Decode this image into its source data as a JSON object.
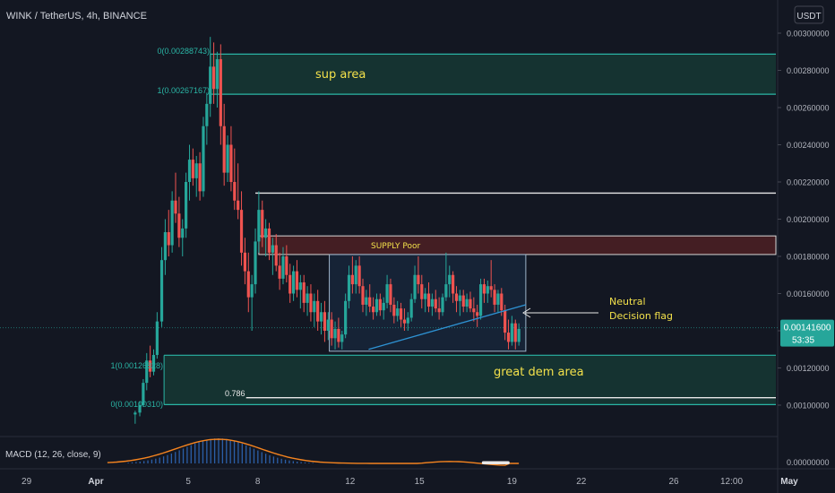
{
  "header": {
    "symbol_title": "WINK / TetherUS, 4h, BINANCE"
  },
  "currency_button": {
    "label": "USDT"
  },
  "price_axis": {
    "ticks": [
      {
        "label": "0.00300000",
        "value": 0.003
      },
      {
        "label": "0.00280000",
        "value": 0.0028
      },
      {
        "label": "0.00260000",
        "value": 0.0026
      },
      {
        "label": "0.00240000",
        "value": 0.0024
      },
      {
        "label": "0.00220000",
        "value": 0.0022
      },
      {
        "label": "0.00200000",
        "value": 0.002
      },
      {
        "label": "0.00180000",
        "value": 0.0018
      },
      {
        "label": "0.00160000",
        "value": 0.0016
      },
      {
        "label": "0.00140000",
        "value": 0.0014
      },
      {
        "label": "0.00120000",
        "value": 0.0012
      },
      {
        "label": "0.00100000",
        "value": 0.001
      }
    ],
    "current_price": "0.00141600",
    "countdown": "53:35",
    "current_value": 0.001416
  },
  "macd_axis": {
    "label": "0.00000000"
  },
  "time_axis": {
    "ticks": [
      {
        "label": "29",
        "day": -3
      },
      {
        "label": "Apr",
        "day": 0
      },
      {
        "label": "5",
        "day": 4
      },
      {
        "label": "8",
        "day": 7
      },
      {
        "label": "12",
        "day": 11
      },
      {
        "label": "15",
        "day": 14
      },
      {
        "label": "19",
        "day": 18
      },
      {
        "label": "22",
        "day": 21
      },
      {
        "label": "26",
        "day": 25
      },
      {
        "label": "12:00",
        "day": 27.5
      },
      {
        "label": "May",
        "day": 30
      }
    ]
  },
  "annotations": {
    "sup_area": "sup area",
    "supply_poor": "SUPPLY Poor",
    "neutral_line1": "Neutral",
    "neutral_line2": "Decision flag",
    "great_dem_area": "great dem area",
    "fib_0_top": "0(0.00288743)",
    "fib_1_top": "1(0.00267167)",
    "fib_1_bottom": "1(0.00126828)",
    "fib_0_bottom": "0(0.00100310)",
    "fib_0786": "0.786"
  },
  "macd": {
    "label": "MACD (12, 26, close, 9)"
  },
  "colors": {
    "background": "#131722",
    "bull": "#26a69a",
    "bear": "#ef5350",
    "zone_line": "#2ab5a5",
    "zone_fill": "#163834",
    "supply_fill": "#4a1f24",
    "annotation_yellow": "#f3e14b",
    "trendline": "#2e93d4",
    "macd_line": "#f5841f",
    "macd_hist": "#2b5fa8"
  },
  "chart_data": {
    "type": "candlestick",
    "title": "WINK / TetherUS, 4h, BINANCE",
    "x_unit": "days from Apr 1",
    "xlim": [
      -4.5,
      30.3
    ],
    "ylim": [
      0.00092,
      0.00306
    ],
    "grid": false,
    "levels": {
      "sup_area": [
        0.00267167,
        0.00288743
      ],
      "dem_area": [
        0.0010031,
        0.00126828
      ],
      "fib_0786_value": 0.00104,
      "resistance_line": 0.00214,
      "supply_poor": [
        0.00181,
        0.00191
      ]
    },
    "range_box": {
      "day_start": 10.1,
      "day_end": 18.6,
      "low": 0.00129,
      "high": 0.00181
    },
    "trendline": {
      "from": {
        "day": 11.8,
        "price": 0.0013
      },
      "to": {
        "day": 18.6,
        "price": 0.00154
      }
    },
    "candles": [
      {
        "day": 1.7,
        "o": 0.00095,
        "h": 0.00097,
        "l": 0.0009,
        "c": 0.00096
      },
      {
        "day": 1.9,
        "o": 0.00096,
        "h": 0.00102,
        "l": 0.00094,
        "c": 0.001
      },
      {
        "day": 2.05,
        "o": 0.001,
        "h": 0.00114,
        "l": 0.00099,
        "c": 0.00112
      },
      {
        "day": 2.2,
        "o": 0.00112,
        "h": 0.00128,
        "l": 0.00108,
        "c": 0.00124
      },
      {
        "day": 2.35,
        "o": 0.00124,
        "h": 0.00132,
        "l": 0.00115,
        "c": 0.00118
      },
      {
        "day": 2.5,
        "o": 0.00118,
        "h": 0.0013,
        "l": 0.00116,
        "c": 0.00127
      },
      {
        "day": 2.65,
        "o": 0.00127,
        "h": 0.0015,
        "l": 0.00125,
        "c": 0.00145
      },
      {
        "day": 2.85,
        "o": 0.00145,
        "h": 0.00185,
        "l": 0.00142,
        "c": 0.00178
      },
      {
        "day": 3.0,
        "o": 0.00178,
        "h": 0.002,
        "l": 0.0017,
        "c": 0.00193
      },
      {
        "day": 3.15,
        "o": 0.00193,
        "h": 0.00205,
        "l": 0.0018,
        "c": 0.00186
      },
      {
        "day": 3.3,
        "o": 0.00186,
        "h": 0.00215,
        "l": 0.00182,
        "c": 0.0021
      },
      {
        "day": 3.45,
        "o": 0.0021,
        "h": 0.00225,
        "l": 0.00198,
        "c": 0.00203
      },
      {
        "day": 3.6,
        "o": 0.00203,
        "h": 0.00212,
        "l": 0.00185,
        "c": 0.0019
      },
      {
        "day": 3.75,
        "o": 0.0019,
        "h": 0.002,
        "l": 0.0018,
        "c": 0.00195
      },
      {
        "day": 3.9,
        "o": 0.00195,
        "h": 0.00225,
        "l": 0.0019,
        "c": 0.0022
      },
      {
        "day": 4.05,
        "o": 0.0022,
        "h": 0.0024,
        "l": 0.0021,
        "c": 0.00232
      },
      {
        "day": 4.2,
        "o": 0.00232,
        "h": 0.00238,
        "l": 0.00218,
        "c": 0.00222
      },
      {
        "day": 4.35,
        "o": 0.00222,
        "h": 0.00234,
        "l": 0.00212,
        "c": 0.0023
      },
      {
        "day": 4.5,
        "o": 0.0023,
        "h": 0.00236,
        "l": 0.0021,
        "c": 0.00215
      },
      {
        "day": 4.65,
        "o": 0.00215,
        "h": 0.00255,
        "l": 0.00212,
        "c": 0.0025
      },
      {
        "day": 4.8,
        "o": 0.0025,
        "h": 0.00268,
        "l": 0.0024,
        "c": 0.00262
      },
      {
        "day": 4.95,
        "o": 0.00262,
        "h": 0.00298,
        "l": 0.00255,
        "c": 0.00282
      },
      {
        "day": 5.1,
        "o": 0.00282,
        "h": 0.00295,
        "l": 0.00262,
        "c": 0.0027
      },
      {
        "day": 5.25,
        "o": 0.0027,
        "h": 0.0029,
        "l": 0.0026,
        "c": 0.00286
      },
      {
        "day": 5.4,
        "o": 0.00286,
        "h": 0.00294,
        "l": 0.0024,
        "c": 0.0025
      },
      {
        "day": 5.55,
        "o": 0.0025,
        "h": 0.00262,
        "l": 0.00218,
        "c": 0.00225
      },
      {
        "day": 5.7,
        "o": 0.00225,
        "h": 0.00245,
        "l": 0.0022,
        "c": 0.0024
      },
      {
        "day": 5.85,
        "o": 0.0024,
        "h": 0.0025,
        "l": 0.00215,
        "c": 0.0022
      },
      {
        "day": 6.0,
        "o": 0.0022,
        "h": 0.00238,
        "l": 0.00205,
        "c": 0.0021
      },
      {
        "day": 6.15,
        "o": 0.0021,
        "h": 0.0023,
        "l": 0.002,
        "c": 0.00205
      },
      {
        "day": 6.3,
        "o": 0.00205,
        "h": 0.00215,
        "l": 0.00175,
        "c": 0.00182
      },
      {
        "day": 6.45,
        "o": 0.00182,
        "h": 0.0019,
        "l": 0.00165,
        "c": 0.00172
      },
      {
        "day": 6.6,
        "o": 0.00172,
        "h": 0.00182,
        "l": 0.0015,
        "c": 0.00158
      },
      {
        "day": 6.75,
        "o": 0.00158,
        "h": 0.0017,
        "l": 0.0014,
        "c": 0.00165
      },
      {
        "day": 6.9,
        "o": 0.00165,
        "h": 0.00195,
        "l": 0.0016,
        "c": 0.00188
      },
      {
        "day": 7.05,
        "o": 0.00188,
        "h": 0.00215,
        "l": 0.00182,
        "c": 0.00205
      },
      {
        "day": 7.2,
        "o": 0.00205,
        "h": 0.0021,
        "l": 0.00185,
        "c": 0.0019
      },
      {
        "day": 7.35,
        "o": 0.0019,
        "h": 0.002,
        "l": 0.0018,
        "c": 0.00195
      },
      {
        "day": 7.5,
        "o": 0.00195,
        "h": 0.00198,
        "l": 0.00178,
        "c": 0.00182
      },
      {
        "day": 7.65,
        "o": 0.00182,
        "h": 0.0019,
        "l": 0.0017,
        "c": 0.00186
      },
      {
        "day": 7.8,
        "o": 0.00186,
        "h": 0.00192,
        "l": 0.00172,
        "c": 0.00175
      },
      {
        "day": 7.95,
        "o": 0.00175,
        "h": 0.00182,
        "l": 0.00162,
        "c": 0.00168
      },
      {
        "day": 8.1,
        "o": 0.00168,
        "h": 0.00185,
        "l": 0.00165,
        "c": 0.0018
      },
      {
        "day": 8.25,
        "o": 0.0018,
        "h": 0.00186,
        "l": 0.00166,
        "c": 0.0017
      },
      {
        "day": 8.4,
        "o": 0.0017,
        "h": 0.00176,
        "l": 0.00155,
        "c": 0.0016
      },
      {
        "day": 8.55,
        "o": 0.0016,
        "h": 0.00175,
        "l": 0.00156,
        "c": 0.00172
      },
      {
        "day": 8.7,
        "o": 0.00172,
        "h": 0.00178,
        "l": 0.00158,
        "c": 0.00162
      },
      {
        "day": 8.85,
        "o": 0.00162,
        "h": 0.0017,
        "l": 0.00152,
        "c": 0.00166
      },
      {
        "day": 9.0,
        "o": 0.00166,
        "h": 0.0017,
        "l": 0.0015,
        "c": 0.00155
      },
      {
        "day": 9.15,
        "o": 0.00155,
        "h": 0.00164,
        "l": 0.00148,
        "c": 0.0016
      },
      {
        "day": 9.3,
        "o": 0.0016,
        "h": 0.00165,
        "l": 0.00145,
        "c": 0.0015
      },
      {
        "day": 9.45,
        "o": 0.0015,
        "h": 0.0016,
        "l": 0.00142,
        "c": 0.00156
      },
      {
        "day": 9.6,
        "o": 0.00156,
        "h": 0.00162,
        "l": 0.0014,
        "c": 0.00145
      },
      {
        "day": 9.75,
        "o": 0.00145,
        "h": 0.00155,
        "l": 0.00138,
        "c": 0.0015
      },
      {
        "day": 9.9,
        "o": 0.0015,
        "h": 0.00156,
        "l": 0.00134,
        "c": 0.0014
      },
      {
        "day": 10.05,
        "o": 0.0014,
        "h": 0.0015,
        "l": 0.00135,
        "c": 0.00146
      },
      {
        "day": 10.2,
        "o": 0.00146,
        "h": 0.0015,
        "l": 0.00132,
        "c": 0.00136
      },
      {
        "day": 10.35,
        "o": 0.00136,
        "h": 0.00145,
        "l": 0.0013,
        "c": 0.00141
      },
      {
        "day": 10.5,
        "o": 0.00141,
        "h": 0.00147,
        "l": 0.00131,
        "c": 0.00134
      },
      {
        "day": 10.65,
        "o": 0.00134,
        "h": 0.0014,
        "l": 0.0013,
        "c": 0.00138
      },
      {
        "day": 10.8,
        "o": 0.00138,
        "h": 0.0016,
        "l": 0.00136,
        "c": 0.00156
      },
      {
        "day": 10.95,
        "o": 0.00156,
        "h": 0.00175,
        "l": 0.00152,
        "c": 0.0017
      },
      {
        "day": 11.1,
        "o": 0.0017,
        "h": 0.0018,
        "l": 0.0016,
        "c": 0.00165
      },
      {
        "day": 11.25,
        "o": 0.00165,
        "h": 0.00178,
        "l": 0.0016,
        "c": 0.00175
      },
      {
        "day": 11.4,
        "o": 0.00175,
        "h": 0.0018,
        "l": 0.0016,
        "c": 0.00164
      },
      {
        "day": 11.55,
        "o": 0.00164,
        "h": 0.00168,
        "l": 0.0015,
        "c": 0.00154
      },
      {
        "day": 11.7,
        "o": 0.00154,
        "h": 0.00162,
        "l": 0.00148,
        "c": 0.00158
      },
      {
        "day": 11.85,
        "o": 0.00158,
        "h": 0.00165,
        "l": 0.0015,
        "c": 0.00153
      },
      {
        "day": 12.0,
        "o": 0.00153,
        "h": 0.00158,
        "l": 0.00146,
        "c": 0.0015
      },
      {
        "day": 12.15,
        "o": 0.0015,
        "h": 0.0016,
        "l": 0.00148,
        "c": 0.00157
      },
      {
        "day": 12.3,
        "o": 0.00157,
        "h": 0.0016,
        "l": 0.00148,
        "c": 0.00151
      },
      {
        "day": 12.45,
        "o": 0.00151,
        "h": 0.00158,
        "l": 0.00146,
        "c": 0.00155
      },
      {
        "day": 12.6,
        "o": 0.00155,
        "h": 0.0017,
        "l": 0.00152,
        "c": 0.00165
      },
      {
        "day": 12.75,
        "o": 0.00165,
        "h": 0.00168,
        "l": 0.0015,
        "c": 0.00154
      },
      {
        "day": 12.9,
        "o": 0.00154,
        "h": 0.00158,
        "l": 0.00144,
        "c": 0.00148
      },
      {
        "day": 13.05,
        "o": 0.00148,
        "h": 0.00156,
        "l": 0.00145,
        "c": 0.00152
      },
      {
        "day": 13.2,
        "o": 0.00152,
        "h": 0.00155,
        "l": 0.00142,
        "c": 0.00146
      },
      {
        "day": 13.35,
        "o": 0.00146,
        "h": 0.00152,
        "l": 0.0014,
        "c": 0.00144
      },
      {
        "day": 13.5,
        "o": 0.00144,
        "h": 0.0015,
        "l": 0.0014,
        "c": 0.00147
      },
      {
        "day": 13.65,
        "o": 0.00147,
        "h": 0.0016,
        "l": 0.00145,
        "c": 0.00157
      },
      {
        "day": 13.8,
        "o": 0.00157,
        "h": 0.00175,
        "l": 0.00155,
        "c": 0.0017
      },
      {
        "day": 13.95,
        "o": 0.0017,
        "h": 0.0018,
        "l": 0.0016,
        "c": 0.00165
      },
      {
        "day": 14.1,
        "o": 0.00165,
        "h": 0.0017,
        "l": 0.00152,
        "c": 0.00157
      },
      {
        "day": 14.25,
        "o": 0.00157,
        "h": 0.00163,
        "l": 0.0015,
        "c": 0.0016
      },
      {
        "day": 14.4,
        "o": 0.0016,
        "h": 0.00166,
        "l": 0.0015,
        "c": 0.00153
      },
      {
        "day": 14.55,
        "o": 0.00153,
        "h": 0.0016,
        "l": 0.00148,
        "c": 0.00157
      },
      {
        "day": 14.7,
        "o": 0.00157,
        "h": 0.00162,
        "l": 0.0015,
        "c": 0.00152
      },
      {
        "day": 14.85,
        "o": 0.00152,
        "h": 0.00158,
        "l": 0.00146,
        "c": 0.0015
      },
      {
        "day": 15.0,
        "o": 0.0015,
        "h": 0.0016,
        "l": 0.00148,
        "c": 0.00158
      },
      {
        "day": 15.15,
        "o": 0.00158,
        "h": 0.00182,
        "l": 0.00156,
        "c": 0.00165
      },
      {
        "day": 15.3,
        "o": 0.00165,
        "h": 0.00175,
        "l": 0.00158,
        "c": 0.0017
      },
      {
        "day": 15.45,
        "o": 0.0017,
        "h": 0.00172,
        "l": 0.00155,
        "c": 0.0016
      },
      {
        "day": 15.6,
        "o": 0.0016,
        "h": 0.00164,
        "l": 0.0015,
        "c": 0.00156
      },
      {
        "day": 15.75,
        "o": 0.00156,
        "h": 0.00162,
        "l": 0.00148,
        "c": 0.00159
      },
      {
        "day": 15.9,
        "o": 0.00159,
        "h": 0.00162,
        "l": 0.0015,
        "c": 0.00153
      },
      {
        "day": 16.05,
        "o": 0.00153,
        "h": 0.0016,
        "l": 0.0015,
        "c": 0.00157
      },
      {
        "day": 16.2,
        "o": 0.00157,
        "h": 0.00161,
        "l": 0.0015,
        "c": 0.00152
      },
      {
        "day": 16.35,
        "o": 0.00152,
        "h": 0.00158,
        "l": 0.00145,
        "c": 0.0015
      },
      {
        "day": 16.5,
        "o": 0.0015,
        "h": 0.00154,
        "l": 0.00142,
        "c": 0.00148
      },
      {
        "day": 16.65,
        "o": 0.00148,
        "h": 0.00168,
        "l": 0.00146,
        "c": 0.00165
      },
      {
        "day": 16.8,
        "o": 0.00165,
        "h": 0.00168,
        "l": 0.00155,
        "c": 0.0016
      },
      {
        "day": 16.95,
        "o": 0.0016,
        "h": 0.00167,
        "l": 0.00155,
        "c": 0.00164
      },
      {
        "day": 17.1,
        "o": 0.00164,
        "h": 0.00178,
        "l": 0.00158,
        "c": 0.00162
      },
      {
        "day": 17.25,
        "o": 0.00162,
        "h": 0.00165,
        "l": 0.0015,
        "c": 0.00154
      },
      {
        "day": 17.4,
        "o": 0.00154,
        "h": 0.00162,
        "l": 0.0015,
        "c": 0.0016
      },
      {
        "day": 17.55,
        "o": 0.0016,
        "h": 0.00163,
        "l": 0.00148,
        "c": 0.00151
      },
      {
        "day": 17.7,
        "o": 0.00151,
        "h": 0.00154,
        "l": 0.00135,
        "c": 0.00139
      },
      {
        "day": 17.85,
        "o": 0.00139,
        "h": 0.00146,
        "l": 0.0013,
        "c": 0.00134
      },
      {
        "day": 18.0,
        "o": 0.00134,
        "h": 0.00148,
        "l": 0.00132,
        "c": 0.00144
      },
      {
        "day": 18.15,
        "o": 0.00144,
        "h": 0.00146,
        "l": 0.0013,
        "c": 0.00134
      },
      {
        "day": 18.3,
        "o": 0.00134,
        "h": 0.00144,
        "l": 0.00132,
        "c": 0.00141
      }
    ],
    "macd_histogram_peak_day": 5.3
  }
}
